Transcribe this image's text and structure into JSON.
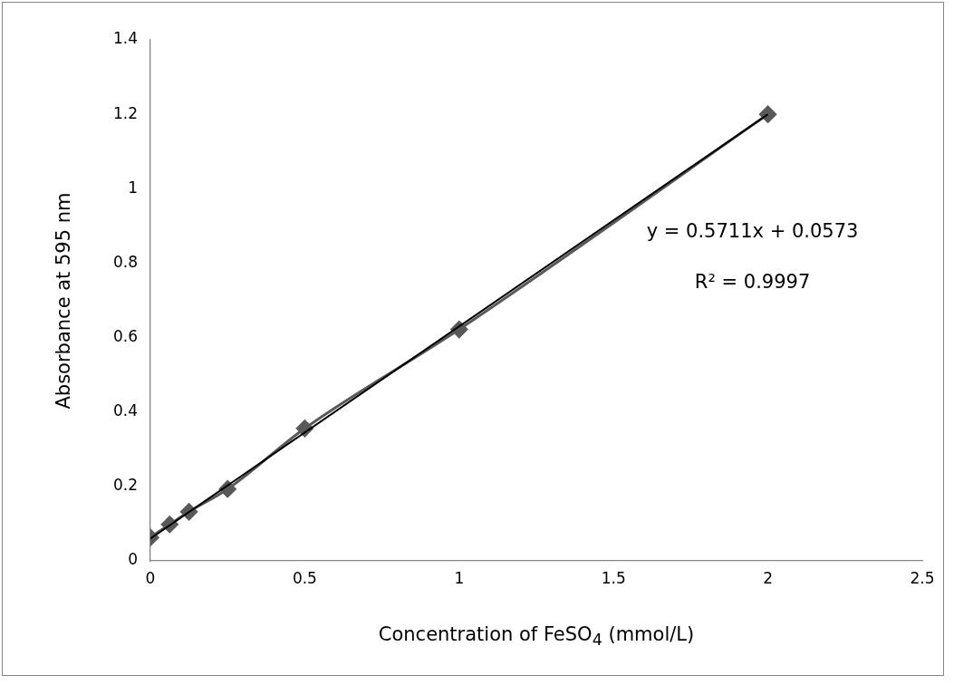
{
  "chart_data": {
    "type": "line",
    "xlabel": "Concentration of FeSO$_{4}$ (mmol/L)",
    "ylabel": "Absorbance at 595 nm",
    "x": [
      0,
      0.0625,
      0.125,
      0.25,
      0.5,
      1,
      2
    ],
    "series": [
      {
        "color": "#595959",
        "values": [
          0.063,
          0.098,
          0.132,
          0.193,
          0.356,
          0.622,
          1.2
        ],
        "marker": "diamond",
        "line_style": "solid"
      },
      {
        "color": "#000000",
        "x": [
          0,
          2
        ],
        "values": [
          0.06,
          1.2
        ],
        "marker": "none",
        "line_style": "solid"
      }
    ],
    "xlim": [
      0,
      2.5
    ],
    "xticks": [
      0,
      0.5,
      1,
      1.5,
      2,
      2.5
    ],
    "ylim": [
      0,
      1.4
    ],
    "yticks": [
      0,
      0.2,
      0.4,
      0.6,
      0.8,
      1,
      1.2,
      1.4
    ],
    "grid": false,
    "legend": false,
    "annotations": [
      "y = 0.5711x + 0.0573",
      "R² = 0.9997"
    ]
  }
}
